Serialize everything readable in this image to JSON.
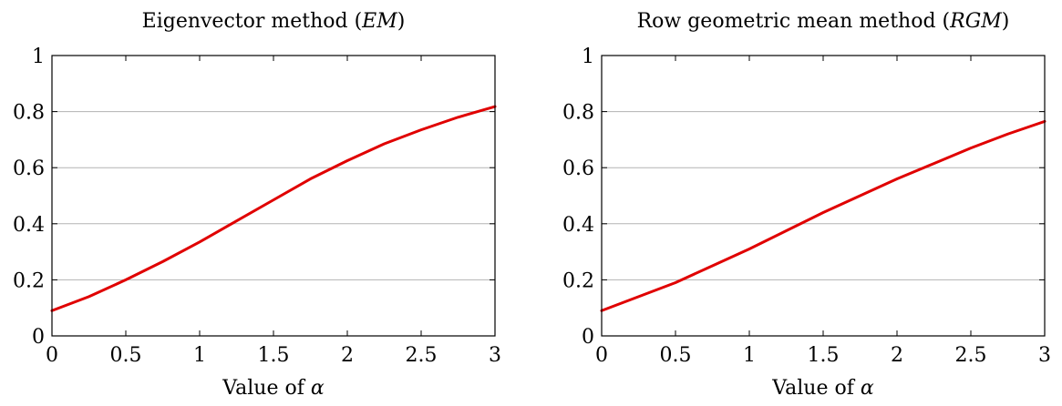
{
  "chart_data": [
    {
      "type": "line",
      "title": "Eigenvector method (",
      "title_math": "EM",
      "title_close": ")",
      "xlabel": "Value of ",
      "xlabel_math": "α",
      "ylabel": "",
      "xlim": [
        0,
        3
      ],
      "ylim": [
        0,
        1
      ],
      "x_ticks": [
        "0",
        "0.5",
        "1",
        "1.5",
        "2",
        "2.5",
        "3"
      ],
      "y_ticks": [
        "0",
        "0.2",
        "0.4",
        "0.6",
        "0.8",
        "1"
      ],
      "grid": "horizontal",
      "series": [
        {
          "color": "#e00000",
          "x": [
            0,
            0.25,
            0.5,
            0.75,
            1,
            1.25,
            1.5,
            1.75,
            2,
            2.25,
            2.5,
            2.75,
            3
          ],
          "y": [
            0.09,
            0.14,
            0.2,
            0.265,
            0.335,
            0.41,
            0.485,
            0.56,
            0.625,
            0.685,
            0.735,
            0.78,
            0.818
          ]
        }
      ]
    },
    {
      "type": "line",
      "title": "Row geometric mean method (",
      "title_math": "RGM",
      "title_close": ")",
      "xlabel": "Value of ",
      "xlabel_math": "α",
      "ylabel": "",
      "xlim": [
        0,
        3
      ],
      "ylim": [
        0,
        1
      ],
      "x_ticks": [
        "0",
        "0.5",
        "1",
        "1.5",
        "2",
        "2.5",
        "3"
      ],
      "y_ticks": [
        "0",
        "0.2",
        "0.4",
        "0.6",
        "0.8",
        "1"
      ],
      "grid": "horizontal",
      "series": [
        {
          "color": "#e00000",
          "x": [
            0,
            0.25,
            0.5,
            0.75,
            1,
            1.25,
            1.5,
            1.75,
            2,
            2.25,
            2.5,
            2.75,
            3
          ],
          "y": [
            0.09,
            0.14,
            0.19,
            0.25,
            0.31,
            0.375,
            0.44,
            0.5,
            0.56,
            0.615,
            0.67,
            0.72,
            0.765
          ]
        }
      ]
    }
  ]
}
